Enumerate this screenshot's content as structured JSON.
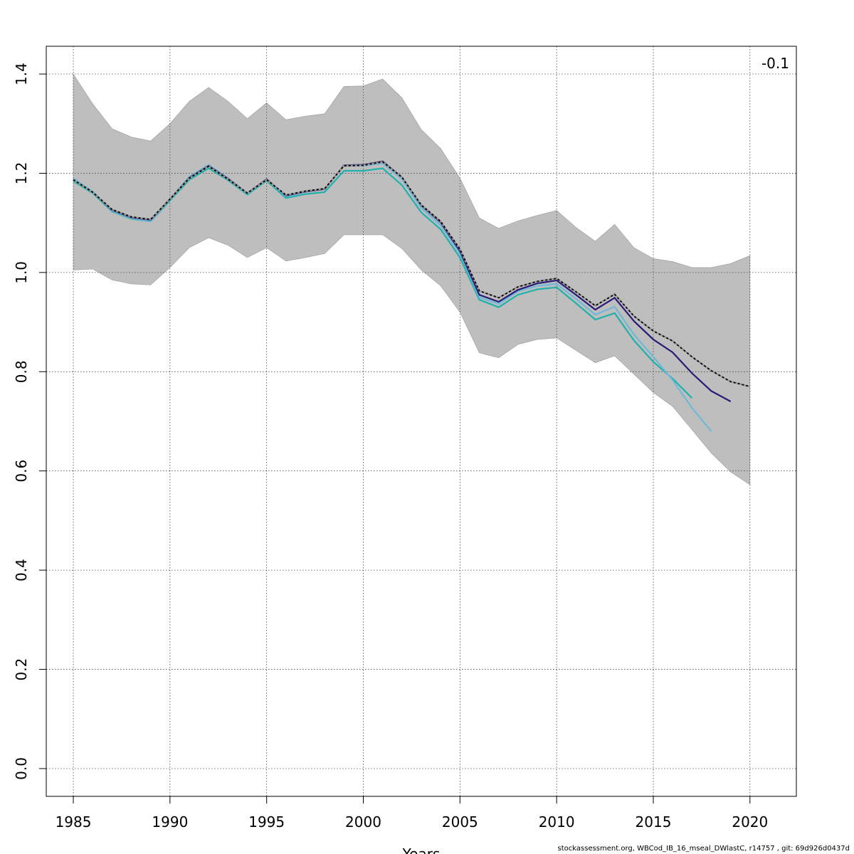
{
  "chart_data": {
    "type": "line",
    "corner_label": "-0.1",
    "xlabel": "Years",
    "ylabel": "",
    "xlim": [
      1983.6,
      2022.4
    ],
    "ylim": [
      -0.056,
      1.456
    ],
    "x_ticks": [
      1985,
      1990,
      1995,
      2000,
      2005,
      2010,
      2015,
      2020
    ],
    "y_ticks": [
      0.0,
      0.2,
      0.4,
      0.6,
      0.8,
      1.0,
      1.2,
      1.4
    ],
    "y_tick_labels": [
      "0.0",
      "0.2",
      "0.4",
      "0.6",
      "0.8",
      "1.0",
      "1.2",
      "1.4"
    ],
    "grid": true,
    "band": {
      "color": "#bebebe",
      "x": [
        1985,
        1986,
        1987,
        1988,
        1989,
        1990,
        1991,
        1992,
        1993,
        1994,
        1995,
        1996,
        1997,
        1998,
        1999,
        2000,
        2001,
        2002,
        2003,
        2004,
        2005,
        2006,
        2007,
        2008,
        2009,
        2010,
        2011,
        2012,
        2013,
        2014,
        2015,
        2016,
        2017,
        2018,
        2019,
        2020
      ],
      "upper": [
        1.4,
        1.34,
        1.29,
        1.273,
        1.265,
        1.3,
        1.345,
        1.373,
        1.345,
        1.31,
        1.342,
        1.308,
        1.315,
        1.32,
        1.375,
        1.376,
        1.39,
        1.352,
        1.288,
        1.25,
        1.19,
        1.11,
        1.089,
        1.104,
        1.115,
        1.125,
        1.091,
        1.063,
        1.097,
        1.05,
        1.028,
        1.022,
        1.01,
        1.01,
        1.018,
        1.034
      ],
      "lower": [
        1.005,
        1.007,
        0.985,
        0.977,
        0.975,
        1.01,
        1.05,
        1.07,
        1.055,
        1.03,
        1.05,
        1.023,
        1.03,
        1.038,
        1.076,
        1.076,
        1.076,
        1.048,
        1.005,
        0.973,
        0.92,
        0.838,
        0.828,
        0.855,
        0.865,
        0.868,
        0.843,
        0.818,
        0.832,
        0.795,
        0.758,
        0.73,
        0.683,
        0.636,
        0.598,
        0.572
      ]
    },
    "series": [
      {
        "color": "#000000",
        "style": "dashed-on-grey",
        "x": [
          1985,
          1986,
          1987,
          1988,
          1989,
          1990,
          1991,
          1992,
          1993,
          1994,
          1995,
          1996,
          1997,
          1998,
          1999,
          2000,
          2001,
          2002,
          2003,
          2004,
          2005,
          2006,
          2007,
          2008,
          2009,
          2010,
          2011,
          2012,
          2013,
          2014,
          2015,
          2016,
          2017,
          2018,
          2019,
          2020
        ],
        "values": [
          1.187,
          1.162,
          1.127,
          1.112,
          1.107,
          1.148,
          1.19,
          1.214,
          1.188,
          1.16,
          1.187,
          1.156,
          1.164,
          1.169,
          1.215,
          1.216,
          1.223,
          1.192,
          1.136,
          1.103,
          1.047,
          0.963,
          0.949,
          0.971,
          0.982,
          0.988,
          0.961,
          0.933,
          0.956,
          0.912,
          0.882,
          0.862,
          0.83,
          0.802,
          0.78,
          0.77
        ]
      },
      {
        "color": "#2a1a78",
        "style": "solid",
        "x": [
          1985,
          1986,
          1987,
          1988,
          1989,
          1990,
          1991,
          1992,
          1993,
          1994,
          1995,
          1996,
          1997,
          1998,
          1999,
          2000,
          2001,
          2002,
          2003,
          2004,
          2005,
          2006,
          2007,
          2008,
          2009,
          2010,
          2011,
          2012,
          2013,
          2014,
          2015,
          2016,
          2017,
          2018,
          2019
        ],
        "values": [
          1.187,
          1.162,
          1.126,
          1.111,
          1.106,
          1.148,
          1.191,
          1.215,
          1.189,
          1.16,
          1.188,
          1.155,
          1.163,
          1.168,
          1.216,
          1.217,
          1.224,
          1.192,
          1.135,
          1.101,
          1.043,
          0.955,
          0.941,
          0.965,
          0.978,
          0.984,
          0.955,
          0.925,
          0.949,
          0.902,
          0.865,
          0.839,
          0.797,
          0.761,
          0.74
        ]
      },
      {
        "color": "#6fb8d8",
        "style": "solid",
        "x": [
          1985,
          1986,
          1987,
          1988,
          1989,
          1990,
          1991,
          1992,
          1993,
          1994,
          1995,
          1996,
          1997,
          1998,
          1999,
          2000,
          2001,
          2002,
          2003,
          2004,
          2005,
          2006,
          2007,
          2008,
          2009,
          2010,
          2011,
          2012,
          2013,
          2014,
          2015,
          2016,
          2017,
          2018
        ],
        "values": [
          1.19,
          1.163,
          1.124,
          1.109,
          1.103,
          1.148,
          1.193,
          1.217,
          1.19,
          1.159,
          1.188,
          1.153,
          1.163,
          1.168,
          1.215,
          1.215,
          1.22,
          1.188,
          1.13,
          1.095,
          1.038,
          0.95,
          0.937,
          0.962,
          0.973,
          0.977,
          0.947,
          0.915,
          0.931,
          0.875,
          0.83,
          0.783,
          0.727,
          0.68
        ]
      },
      {
        "color": "#20b2aa",
        "style": "solid",
        "x": [
          1985,
          1986,
          1987,
          1988,
          1989,
          1990,
          1991,
          1992,
          1993,
          1994,
          1995,
          1996,
          1997,
          1998,
          1999,
          2000,
          2001,
          2002,
          2003,
          2004,
          2005,
          2006,
          2007,
          2008,
          2009,
          2010,
          2011,
          2012,
          2013,
          2014,
          2015,
          2016,
          2017
        ],
        "values": [
          1.184,
          1.16,
          1.123,
          1.108,
          1.103,
          1.145,
          1.187,
          1.21,
          1.186,
          1.157,
          1.185,
          1.15,
          1.158,
          1.162,
          1.205,
          1.205,
          1.21,
          1.176,
          1.121,
          1.087,
          1.03,
          0.945,
          0.93,
          0.955,
          0.966,
          0.97,
          0.938,
          0.905,
          0.918,
          0.863,
          0.82,
          0.786,
          0.747
        ]
      }
    ]
  },
  "footer": "stockassessment.org, WBCod_IB_16_mseal_DWlastC, r14757 , git: 69d926d0437d"
}
